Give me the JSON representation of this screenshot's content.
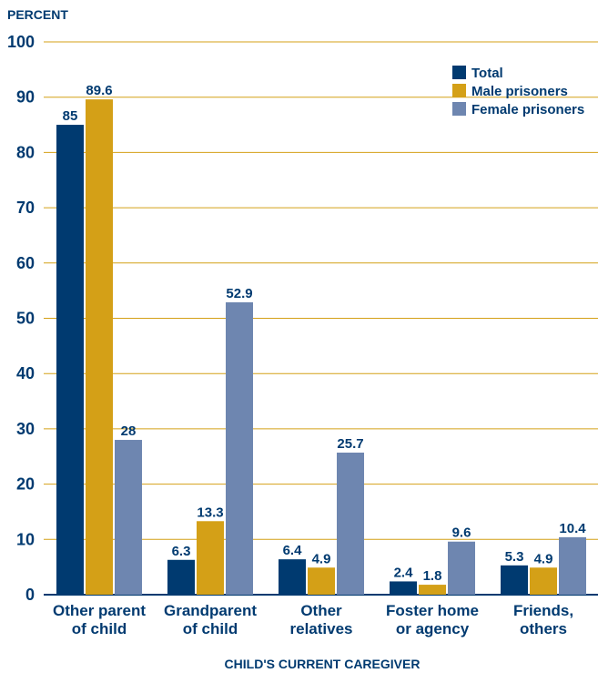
{
  "chart_data": {
    "type": "bar",
    "title": "",
    "ylabel": "PERCENT",
    "xlabel": "CHILD'S CURRENT CAREGIVER",
    "ylim": [
      0,
      100
    ],
    "yticks": [
      0,
      10,
      20,
      30,
      40,
      50,
      60,
      70,
      80,
      90,
      100
    ],
    "grid": true,
    "legend_position": "top-right",
    "categories": [
      [
        "Other parent",
        "of child"
      ],
      [
        "Grandparent",
        "of child"
      ],
      [
        "Other",
        "relatives"
      ],
      [
        "Foster home",
        "or agency"
      ],
      [
        "Friends,",
        "others"
      ]
    ],
    "series": [
      {
        "name": "Total",
        "color": "#003a70",
        "values": [
          85,
          6.3,
          6.4,
          2.4,
          5.3
        ],
        "labels": [
          "85",
          "6.3",
          "6.4",
          "2.4",
          "5.3"
        ]
      },
      {
        "name": "Male prisoners",
        "color": "#d4a017",
        "values": [
          89.6,
          13.3,
          4.9,
          1.8,
          4.9
        ],
        "labels": [
          "89.6",
          "13.3",
          "4.9",
          "1.8",
          "4.9"
        ]
      },
      {
        "name": "Female prisoners",
        "color": "#6e86b0",
        "values": [
          28,
          52.9,
          25.7,
          9.6,
          10.4
        ],
        "labels": [
          "28",
          "52.9",
          "25.7",
          "9.6",
          "10.4"
        ]
      }
    ],
    "colors": {
      "text": "#003a70",
      "grid": "#d4a017",
      "axis": "#003a70"
    }
  }
}
